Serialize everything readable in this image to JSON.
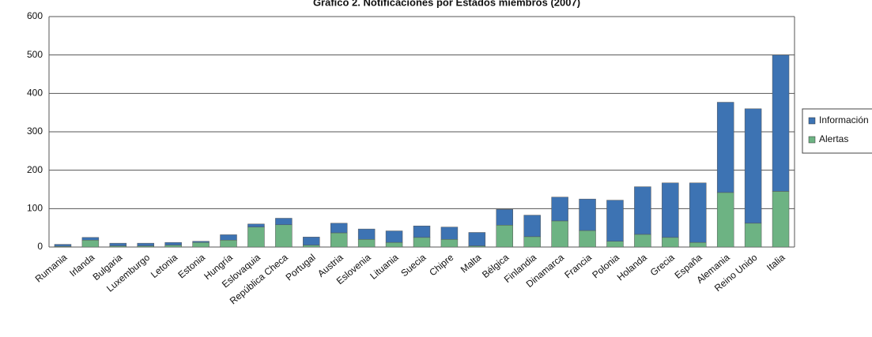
{
  "chart_data": {
    "type": "stacked_bar",
    "title": "Gráfico 2. Notificaciones por Estados miembros (2007)",
    "categories": [
      "Rumania",
      "Irlanda",
      "Bulgaria",
      "Luxemburgo",
      "Letonia",
      "Estonia",
      "Hungría",
      "Eslovaquia",
      "República Checa",
      "Portugal",
      "Austria",
      "Eslovenia",
      "Lituania",
      "Suecia",
      "Chipre",
      "Malta",
      "Bélgica",
      "Finlandia",
      "Dinamarca",
      "Francia",
      "Polonia",
      "Holanda",
      "Grecia",
      "España",
      "Alemania",
      "Reino Unido",
      "Italia"
    ],
    "series": [
      {
        "name": "Información",
        "color": "#3d73b3",
        "values": [
          5,
          7,
          7,
          7,
          7,
          3,
          14,
          8,
          17,
          21,
          25,
          27,
          30,
          30,
          32,
          35,
          41,
          56,
          62,
          82,
          107,
          124,
          142,
          155,
          235,
          298,
          355
        ]
      },
      {
        "name": "Alertas",
        "color": "#6db383",
        "values": [
          2,
          18,
          3,
          3,
          5,
          12,
          18,
          52,
          58,
          5,
          37,
          20,
          12,
          25,
          20,
          3,
          57,
          27,
          68,
          43,
          15,
          33,
          25,
          12,
          142,
          62,
          145
        ]
      }
    ],
    "ylim": [
      0,
      600
    ],
    "yticks": [
      0,
      100,
      200,
      300,
      400,
      500,
      600
    ],
    "grid": true,
    "legend": "right"
  }
}
